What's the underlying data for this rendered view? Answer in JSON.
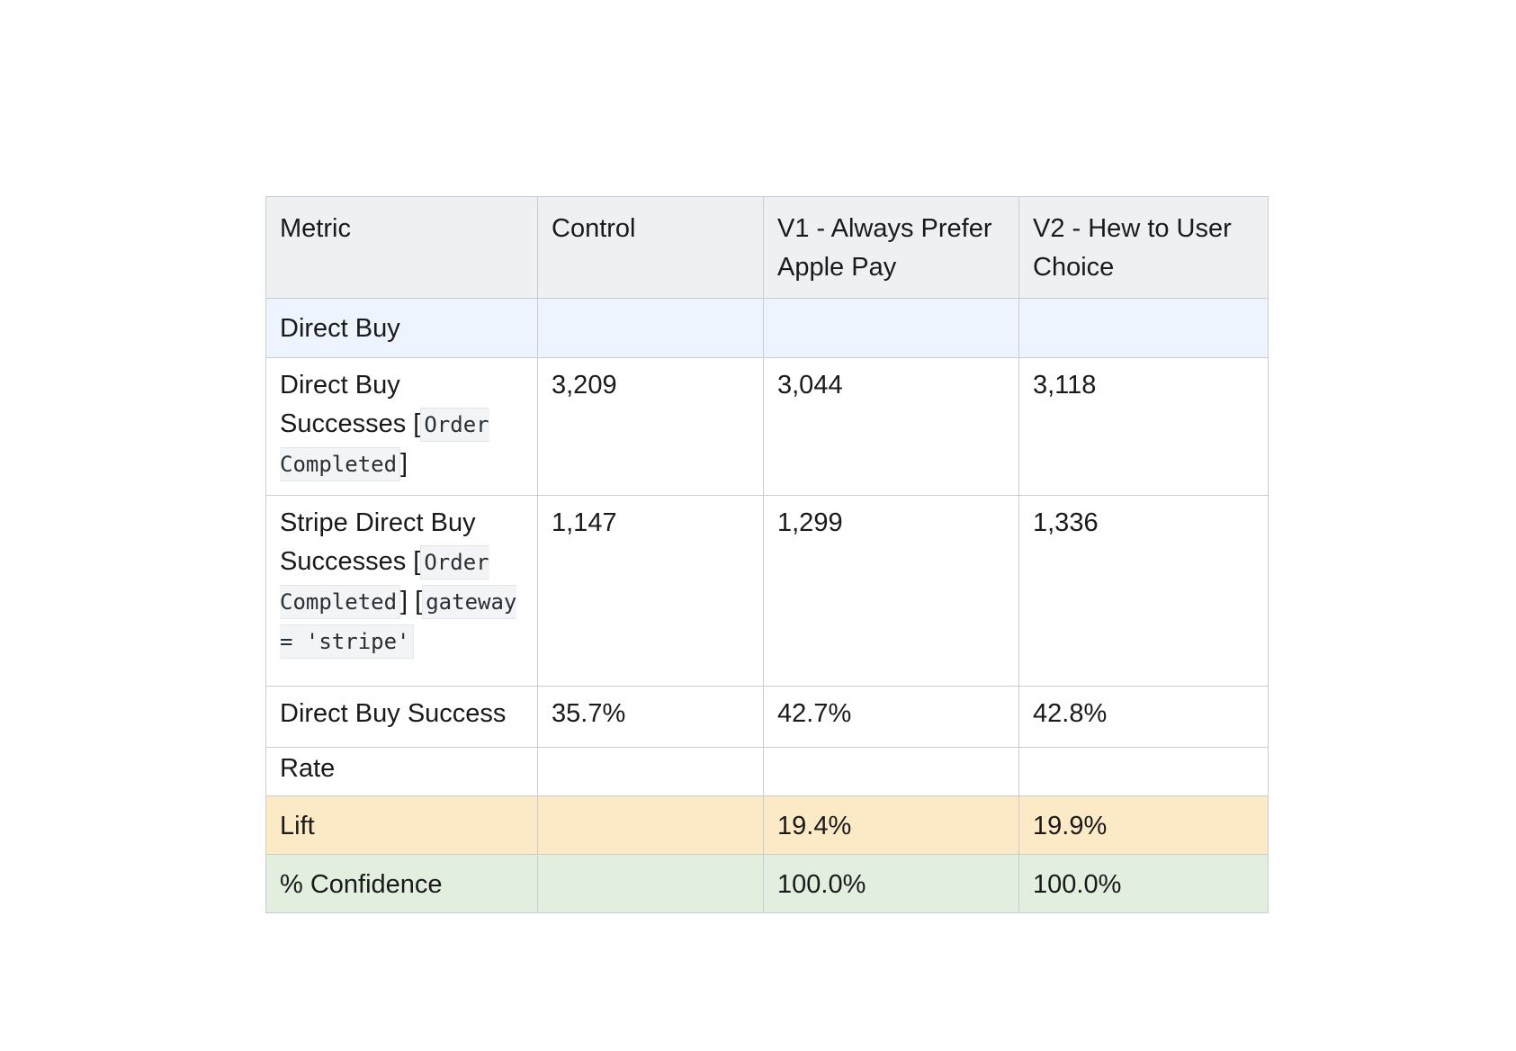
{
  "table": {
    "headers": [
      "Metric",
      "Control",
      "V1 - Always Prefer Apple Pay",
      "V2 - Hew to User Choice"
    ],
    "section": {
      "label": "Direct Buy"
    },
    "direct_buy_successes": {
      "label_text": "Direct Buy Successes [",
      "label_code": "Order Completed",
      "label_close": "]",
      "values": [
        "3,209",
        "3,044",
        "3,118"
      ]
    },
    "stripe_successes": {
      "label_text": "Stripe Direct Buy Successes [",
      "label_code1": "Order Completed",
      "label_mid": "] [",
      "label_code2": "gateway = 'stripe'",
      "label_close": "",
      "values": [
        "1,147",
        "1,299",
        "1,336"
      ]
    },
    "success_rate": {
      "label_line1": "Direct Buy Success",
      "label_line2": "Rate",
      "values": [
        "35.7%",
        "42.7%",
        "42.8%"
      ]
    },
    "lift": {
      "label": "Lift",
      "values": [
        "",
        "19.4%",
        "19.9%"
      ]
    },
    "confidence": {
      "label": "% Confidence",
      "values": [
        "",
        "100.0%",
        "100.0%"
      ]
    }
  },
  "colors": {
    "header_bg": "#eff0f1",
    "section_bg": "#edf4fd",
    "lift_bg": "#fce9c6",
    "confidence_bg": "#e2efdf",
    "border": "#c9ccd1"
  }
}
